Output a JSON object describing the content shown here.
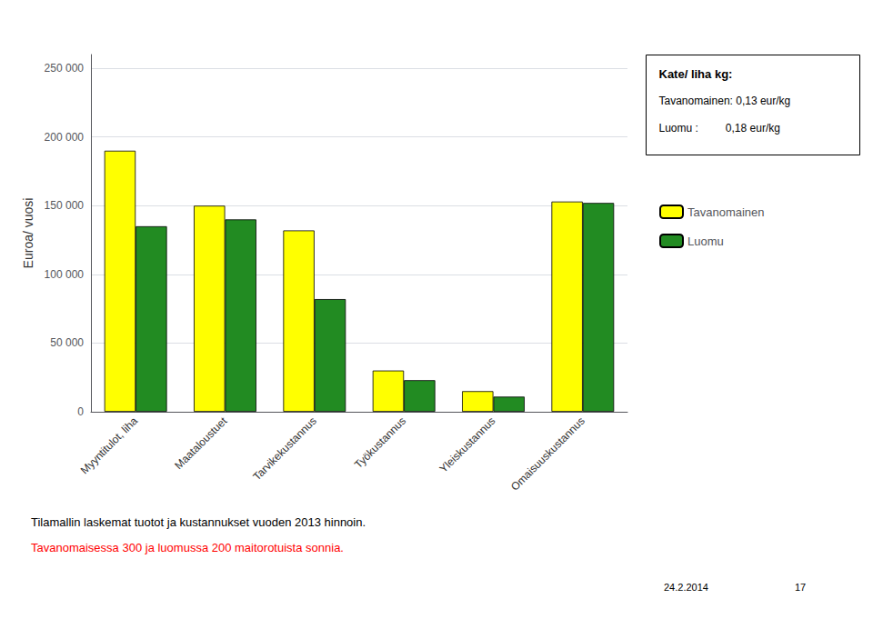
{
  "chart_data": {
    "type": "bar",
    "categories": [
      "Myyntitulot, liha",
      "Maataloustuet",
      "Tarvikekustannus",
      "Työkustannus",
      "Yleiskustannus",
      "Omaisuuskustannus"
    ],
    "series": [
      {
        "name": "Tavanomainen",
        "color": "#FFFF00",
        "values": [
          190000,
          150000,
          132000,
          30000,
          15000,
          153000
        ]
      },
      {
        "name": "Luomu",
        "color": "#228B22",
        "values": [
          135000,
          140000,
          82000,
          23000,
          11000,
          152000
        ]
      }
    ],
    "ylabel": "Euroa/ vuosi",
    "ylim": [
      0,
      260000
    ],
    "yticks": [
      0,
      {
        "value": 50000,
        "label": "50 000"
      },
      {
        "value": 100000,
        "label": "100 000"
      },
      {
        "value": 150000,
        "label": "150 000"
      },
      {
        "value": 200000,
        "label": "200 000"
      },
      {
        "value": 250000,
        "label": "250 000"
      }
    ],
    "grid": true,
    "legend": "right",
    "annotations": [
      {
        "text": "Kate/ liha kg:"
      },
      {
        "text": "Tavanomainen: 0,13 eur/kg"
      },
      {
        "text": "Luomu :         0,18 eur/kg"
      },
      {
        "text": "Tilamallin laskemat tuotot ja kustannukset vuoden 2013 hinnoin."
      },
      {
        "text": "Tavanomaisessa 300 ja luomussa 200 maitorotuista sonnia.",
        "color": "red"
      },
      {
        "text": "24.2.2014"
      },
      {
        "text": "17"
      }
    ]
  }
}
